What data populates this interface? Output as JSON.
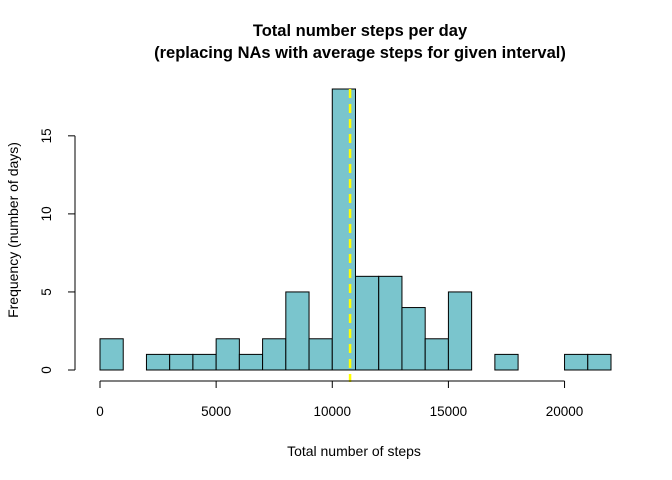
{
  "chart_data": {
    "type": "bar",
    "title_line1": "Total number steps per day",
    "title_line2": "(replacing NAs with average steps for given interval)",
    "xlabel": "Total number of steps",
    "ylabel": "Frequency (number of days)",
    "xlim": [
      0,
      22000
    ],
    "ylim": [
      0,
      18
    ],
    "bin_width": 1000,
    "bins": [
      {
        "start": 0,
        "count": 2
      },
      {
        "start": 1000,
        "count": 0
      },
      {
        "start": 2000,
        "count": 1
      },
      {
        "start": 3000,
        "count": 1
      },
      {
        "start": 4000,
        "count": 1
      },
      {
        "start": 5000,
        "count": 2
      },
      {
        "start": 6000,
        "count": 1
      },
      {
        "start": 7000,
        "count": 2
      },
      {
        "start": 8000,
        "count": 5
      },
      {
        "start": 9000,
        "count": 2
      },
      {
        "start": 10000,
        "count": 18
      },
      {
        "start": 11000,
        "count": 6
      },
      {
        "start": 12000,
        "count": 6
      },
      {
        "start": 13000,
        "count": 4
      },
      {
        "start": 14000,
        "count": 2
      },
      {
        "start": 15000,
        "count": 5
      },
      {
        "start": 16000,
        "count": 0
      },
      {
        "start": 17000,
        "count": 1
      },
      {
        "start": 18000,
        "count": 0
      },
      {
        "start": 19000,
        "count": 0
      },
      {
        "start": 20000,
        "count": 1
      },
      {
        "start": 21000,
        "count": 1
      }
    ],
    "x_ticks": [
      0,
      5000,
      10000,
      15000,
      20000
    ],
    "y_ticks": [
      0,
      5,
      10,
      15
    ],
    "mean_line": 10766,
    "bar_color": "#7AC5CD",
    "bar_border_color": "#000000",
    "mean_line_color": "#FFFF00",
    "grid": false,
    "legend": "none"
  }
}
